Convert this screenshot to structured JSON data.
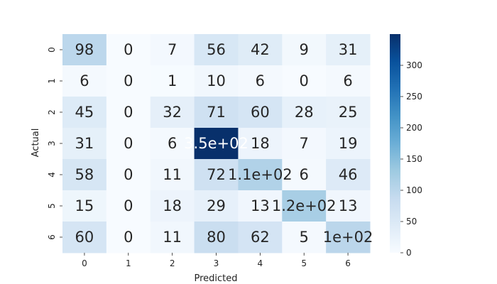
{
  "chart_data": {
    "type": "heatmap",
    "title": "",
    "xlabel": "Predicted",
    "ylabel": "Actual",
    "x_categories": [
      "0",
      "1",
      "2",
      "3",
      "4",
      "5",
      "6"
    ],
    "y_categories": [
      "0",
      "1",
      "2",
      "3",
      "4",
      "5",
      "6"
    ],
    "values": [
      [
        98,
        0,
        7,
        56,
        42,
        9,
        31
      ],
      [
        6,
        0,
        1,
        10,
        6,
        0,
        6
      ],
      [
        45,
        0,
        32,
        71,
        60,
        28,
        25
      ],
      [
        31,
        0,
        6,
        350,
        18,
        7,
        19
      ],
      [
        58,
        0,
        11,
        72,
        110,
        6,
        46
      ],
      [
        15,
        0,
        18,
        29,
        13,
        120,
        13
      ],
      [
        60,
        0,
        11,
        80,
        62,
        5,
        100
      ]
    ],
    "cell_labels": [
      [
        "98",
        "0",
        "7",
        "56",
        "42",
        "9",
        "31"
      ],
      [
        "6",
        "0",
        "1",
        "10",
        "6",
        "0",
        "6"
      ],
      [
        "45",
        "0",
        "32",
        "71",
        "60",
        "28",
        "25"
      ],
      [
        "31",
        "0",
        "6",
        "3.5e+02",
        "18",
        "7",
        "19"
      ],
      [
        "58",
        "0",
        "11",
        "72",
        "1.1e+02",
        "6",
        "46"
      ],
      [
        "15",
        "0",
        "18",
        "29",
        "13",
        "1.2e+02",
        "13"
      ],
      [
        "60",
        "0",
        "11",
        "80",
        "62",
        "5",
        "1e+02"
      ]
    ],
    "colormap": "Blues",
    "vmin": 0,
    "vmax": 350,
    "colorbar_ticks": [
      0,
      50,
      100,
      150,
      200,
      250,
      300
    ],
    "colorbar_tick_labels": [
      "0",
      "50",
      "100",
      "150",
      "200",
      "250",
      "300"
    ],
    "annot_dark_color": "#262626",
    "annot_light_color": "#ffffff"
  }
}
